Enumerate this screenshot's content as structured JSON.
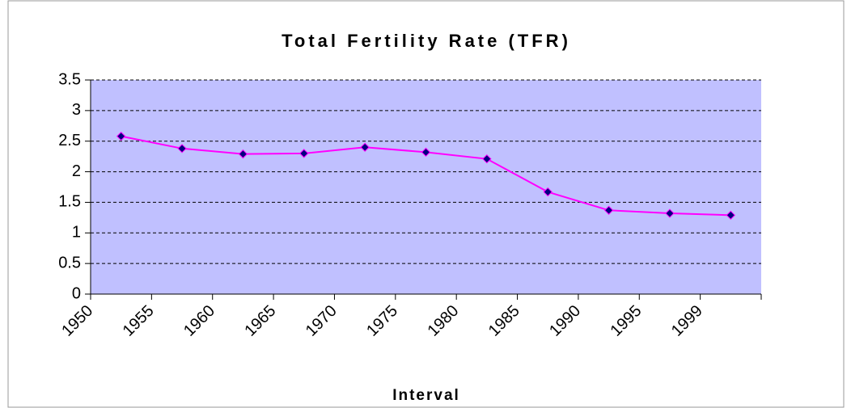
{
  "chart_data": {
    "type": "line",
    "title": "Total Fertility Rate (TFR)",
    "x_label": "Interval",
    "categories": [
      "1950",
      "1955",
      "1960",
      "1965",
      "1970",
      "1975",
      "1980",
      "1985",
      "1990",
      "1995",
      "1999"
    ],
    "values": [
      2.58,
      2.38,
      2.29,
      2.3,
      2.4,
      2.32,
      2.21,
      1.67,
      1.37,
      1.32,
      1.29
    ],
    "color": "#ff00ff",
    "marker_color": "#000080",
    "plot_background": "#c0c0ff",
    "ylim": [
      0,
      3.5
    ],
    "yticks": [
      0,
      0.5,
      1,
      1.5,
      2,
      2.5,
      3,
      3.5
    ],
    "grid": true
  }
}
